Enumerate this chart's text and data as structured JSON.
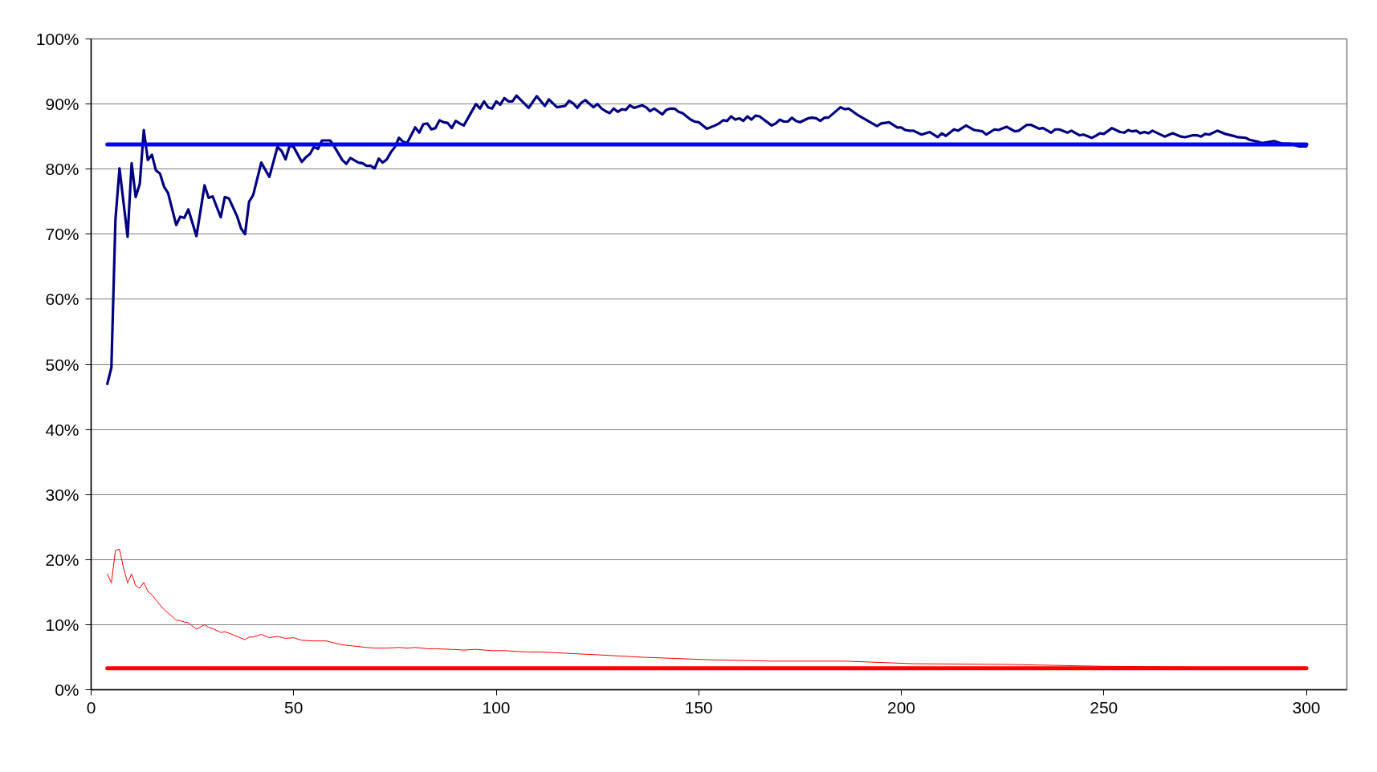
{
  "chart_data": {
    "type": "line",
    "xlim": [
      0,
      310
    ],
    "xticks": [
      0,
      50,
      100,
      150,
      200,
      250,
      300
    ],
    "ylim": [
      0,
      100
    ],
    "yticks": [
      {
        "value": 0,
        "label": "0%"
      },
      {
        "value": 10,
        "label": "10%"
      },
      {
        "value": 20,
        "label": "20%"
      },
      {
        "value": 30,
        "label": "30%"
      },
      {
        "value": 40,
        "label": "40%"
      },
      {
        "value": 50,
        "label": "50%"
      },
      {
        "value": 60,
        "label": "60%"
      },
      {
        "value": 70,
        "label": "70%"
      },
      {
        "value": 80,
        "label": "80%"
      },
      {
        "value": 90,
        "label": "90%"
      },
      {
        "value": 100,
        "label": "100%"
      }
    ],
    "grid": "y",
    "marker": "none",
    "line_style": "solid",
    "series": [
      {
        "color": "#000080",
        "x": [
          4,
          5,
          6,
          7,
          9,
          10,
          11,
          12,
          13,
          14,
          15,
          16,
          17,
          18,
          19,
          21,
          22,
          23,
          24,
          26,
          28,
          29,
          30,
          32,
          33,
          34,
          36,
          37,
          38,
          39,
          40,
          42,
          44,
          46,
          47,
          48,
          49,
          50,
          52,
          53,
          54,
          55,
          56,
          57,
          59,
          60,
          62,
          63,
          64,
          66,
          67,
          68,
          69,
          70,
          71,
          72,
          73,
          74,
          75,
          76,
          77,
          78,
          80,
          81,
          82,
          83,
          84,
          85,
          86,
          87,
          88,
          89,
          90,
          91,
          92,
          95,
          96,
          97,
          98,
          99,
          100,
          101,
          102,
          103,
          104,
          105,
          108,
          110,
          112,
          113,
          115,
          117,
          118,
          119,
          120,
          121,
          122,
          124,
          125,
          126,
          127,
          128,
          129,
          130,
          131,
          132,
          133,
          134,
          136,
          137,
          138,
          139,
          141,
          142,
          143,
          144,
          145,
          146,
          148,
          149,
          150,
          152,
          154,
          155,
          156,
          157,
          158,
          159,
          160,
          161,
          162,
          163,
          164,
          165,
          168,
          169,
          170,
          171,
          172,
          173,
          174,
          175,
          177,
          178,
          179,
          180,
          181,
          182,
          185,
          186,
          187,
          189,
          194,
          195,
          197,
          199,
          200,
          201,
          202,
          203,
          205,
          207,
          209,
          210,
          211,
          213,
          214,
          216,
          218,
          220,
          221,
          223,
          224,
          226,
          228,
          229,
          231,
          232,
          234,
          235,
          237,
          238,
          239,
          241,
          242,
          244,
          245,
          247,
          248,
          249,
          250,
          252,
          254,
          255,
          256,
          257,
          258,
          259,
          260,
          261,
          262,
          265,
          267,
          269,
          270,
          272,
          273,
          274,
          275,
          276,
          278,
          280,
          282,
          283,
          285,
          286,
          288,
          289,
          292,
          294,
          296,
          298,
          300
        ],
        "values": [
          47,
          49.5,
          72.2,
          80.1,
          69.6,
          80.9,
          75.7,
          77.7,
          86.0,
          81.4,
          82.2,
          79.8,
          79.3,
          77.3,
          76.3,
          71.4,
          72.7,
          72.5,
          73.8,
          69.7,
          77.5,
          75.6,
          75.8,
          72.6,
          75.7,
          75.5,
          72.8,
          70.9,
          70.0,
          75.0,
          76.0,
          81.0,
          78.8,
          83.4,
          82.8,
          81.5,
          83.6,
          83.4,
          81.1,
          81.8,
          82.3,
          83.4,
          83.1,
          84.4,
          84.4,
          83.5,
          81.4,
          80.8,
          81.7,
          81.0,
          80.9,
          80.5,
          80.5,
          80.1,
          81.6,
          81.0,
          81.5,
          82.6,
          83.4,
          84.8,
          84.2,
          84.0,
          86.4,
          85.6,
          86.9,
          87.0,
          86.1,
          86.3,
          87.5,
          87.2,
          87.1,
          86.3,
          87.4,
          87.0,
          86.7,
          90.0,
          89.3,
          90.4,
          89.5,
          89.3,
          90.4,
          89.9,
          90.9,
          90.4,
          90.4,
          91.3,
          89.4,
          91.2,
          89.7,
          90.7,
          89.5,
          89.7,
          90.5,
          90.1,
          89.4,
          90.2,
          90.6,
          89.5,
          90.0,
          89.3,
          88.9,
          88.6,
          89.3,
          88.8,
          89.2,
          89.1,
          89.8,
          89.4,
          89.8,
          89.5,
          88.9,
          89.3,
          88.4,
          89.1,
          89.3,
          89.3,
          88.8,
          88.6,
          87.6,
          87.3,
          87.2,
          86.2,
          86.7,
          87.0,
          87.5,
          87.4,
          88.1,
          87.6,
          87.8,
          87.4,
          88.1,
          87.6,
          88.2,
          88.1,
          86.7,
          87.0,
          87.6,
          87.3,
          87.3,
          87.9,
          87.4,
          87.2,
          87.8,
          87.9,
          87.8,
          87.4,
          87.9,
          87.9,
          89.5,
          89.2,
          89.3,
          88.4,
          86.6,
          87.0,
          87.2,
          86.4,
          86.4,
          86.0,
          85.9,
          85.9,
          85.3,
          85.7,
          84.9,
          85.5,
          85.1,
          86.1,
          85.9,
          86.7,
          86.0,
          85.8,
          85.3,
          86.1,
          86.0,
          86.5,
          85.8,
          85.9,
          86.8,
          86.8,
          86.2,
          86.3,
          85.6,
          86.1,
          86.1,
          85.6,
          85.9,
          85.2,
          85.3,
          84.8,
          85.1,
          85.5,
          85.4,
          86.3,
          85.7,
          85.6,
          86.0,
          85.8,
          85.9,
          85.5,
          85.7,
          85.5,
          85.9,
          85.0,
          85.5,
          85.0,
          84.9,
          85.2,
          85.2,
          85.0,
          85.4,
          85.3,
          85.9,
          85.4,
          85.1,
          84.9,
          84.8,
          84.5,
          84.2,
          84.0,
          84.3,
          83.9,
          83.9,
          83.5,
          83.5
        ]
      },
      {
        "color": "#ff0000",
        "x": [
          4,
          5,
          6,
          7,
          8,
          9,
          10,
          11,
          12,
          13,
          14,
          15,
          16,
          18,
          19,
          21,
          22,
          23,
          24,
          26,
          28,
          29,
          30,
          32,
          33,
          34,
          38,
          39,
          40,
          42,
          44,
          46,
          48,
          50,
          52,
          55,
          58,
          62,
          65,
          68,
          70,
          73,
          76,
          78,
          80,
          83,
          85,
          89,
          92,
          95,
          99,
          102,
          105,
          108,
          111,
          124,
          136,
          153,
          168,
          186,
          203,
          225,
          250,
          269,
          288,
          300
        ],
        "values": [
          17.8,
          16.4,
          21.4,
          21.6,
          18.7,
          16.4,
          17.8,
          16.0,
          15.6,
          16.5,
          15.1,
          14.6,
          13.8,
          12.3,
          11.8,
          10.7,
          10.6,
          10.4,
          10.3,
          9.3,
          10.0,
          9.6,
          9.4,
          8.8,
          8.9,
          8.7,
          7.7,
          8.1,
          8.1,
          8.5,
          8.0,
          8.2,
          7.9,
          8.0,
          7.6,
          7.5,
          7.5,
          6.9,
          6.7,
          6.5,
          6.4,
          6.4,
          6.5,
          6.4,
          6.5,
          6.3,
          6.3,
          6.2,
          6.1,
          6.2,
          6.0,
          6.0,
          5.9,
          5.8,
          5.8,
          5.4,
          5.0,
          4.6,
          4.4,
          4.4,
          4.0,
          3.9,
          3.6,
          3.5,
          3.3,
          3.3
        ]
      },
      {
        "color": "#0000ff",
        "x": [
          4,
          300
        ],
        "values": [
          83.8,
          83.8
        ]
      },
      {
        "color": "#ff0000",
        "x": [
          4,
          300
        ],
        "values": [
          3.3,
          3.3
        ]
      }
    ]
  }
}
